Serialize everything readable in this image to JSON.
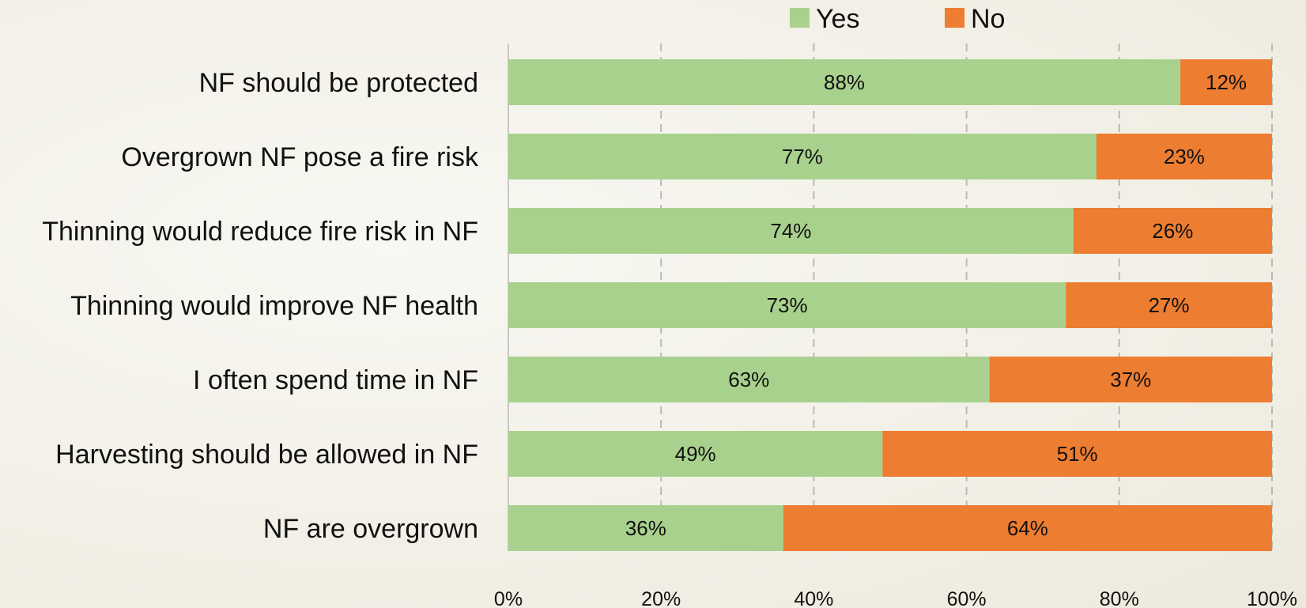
{
  "chart_data": {
    "type": "bar",
    "orientation": "horizontal",
    "stacked": true,
    "categories": [
      "NF should be protected",
      "Overgrown NF pose a fire risk",
      "Thinning would reduce fire risk in NF",
      "Thinning would improve NF health",
      "I often spend time in NF",
      "Harvesting should be allowed in NF",
      "NF are overgrown"
    ],
    "series": [
      {
        "name": "Yes",
        "color": "#a9d18e",
        "values": [
          88,
          77,
          74,
          73,
          63,
          49,
          36
        ],
        "labels": [
          "88%",
          "77%",
          "74%",
          "73%",
          "63%",
          "49%",
          "36%"
        ]
      },
      {
        "name": "No",
        "color": "#ed7d31",
        "values": [
          12,
          23,
          26,
          27,
          37,
          51,
          64
        ],
        "labels": [
          "12%",
          "23%",
          "26%",
          "27%",
          "37%",
          "51%",
          "64%"
        ]
      }
    ],
    "xlim": [
      0,
      100
    ],
    "xticks": [
      0,
      20,
      40,
      60,
      80,
      100
    ],
    "xtick_labels": [
      "0%",
      "20%",
      "40%",
      "60%",
      "80%",
      "100%"
    ],
    "grid": true,
    "legend_position": "top"
  }
}
